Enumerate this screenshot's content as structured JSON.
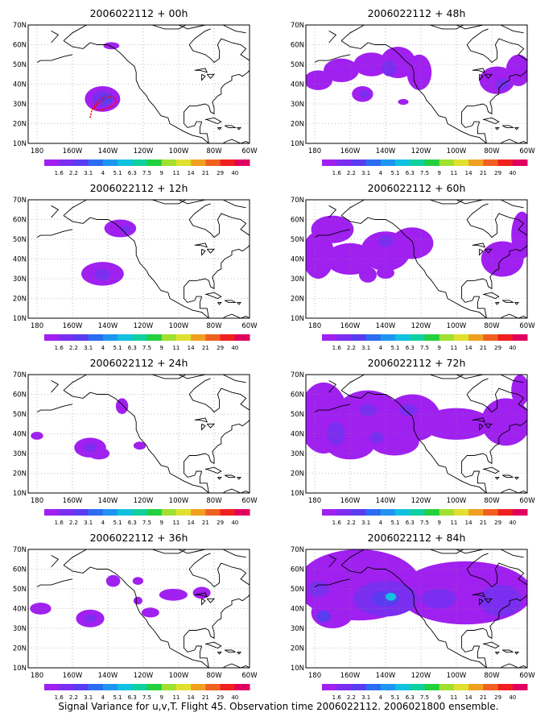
{
  "caption": "Signal Variance for u,v,T. Flight 45. Observation time 2006022112. 2006021800 ensemble.",
  "chart_data": {
    "type": "heatmap",
    "colorbar": {
      "labels": [
        "1.6",
        "2.2",
        "3.1",
        "4",
        "5.1",
        "6.3",
        "7.5",
        "9",
        "11",
        "14",
        "21",
        "29",
        "40"
      ],
      "colors": [
        "#a020f0",
        "#7a2ef0",
        "#5a3cf0",
        "#2b6cf0",
        "#1e96f0",
        "#12c0e0",
        "#10d0a0",
        "#22d040",
        "#a0e030",
        "#e0e030",
        "#f0a020",
        "#f06020",
        "#f02020",
        "#e00060"
      ]
    },
    "panels": [
      {
        "title": "2006022112 + 00h",
        "xticks": [
          "180",
          "160W",
          "140W",
          "120W",
          "100W",
          "80W",
          "60W"
        ],
        "yticks": [
          "10N",
          "20N",
          "30N",
          "40N",
          "50N",
          "60N",
          "70N"
        ],
        "xlim": [
          -185,
          -60
        ],
        "ylim": [
          10,
          70
        ],
        "blobs": [
          {
            "lon": -143,
            "lat": 32.5,
            "rlon": 10,
            "rlat": 6.5,
            "level": 0
          },
          {
            "lon": -143,
            "lat": 32.5,
            "rlon": 6,
            "rlat": 4,
            "level": 1
          },
          {
            "lon": -141,
            "lat": 32.5,
            "rlon": 3.5,
            "rlat": 2.5,
            "level": 2
          },
          {
            "lon": -138,
            "lat": 59.5,
            "rlon": 4.5,
            "rlat": 1.8,
            "level": 0
          }
        ],
        "track": true
      },
      {
        "title": "2006022112 + 48h",
        "xticks": [
          "180",
          "160W",
          "140W",
          "120W",
          "100W",
          "80W",
          "60W"
        ],
        "yticks": [
          "10N",
          "20N",
          "30N",
          "40N",
          "50N",
          "60N",
          "70N"
        ],
        "xlim": [
          -185,
          -60
        ],
        "ylim": [
          10,
          70
        ],
        "blobs": [
          {
            "lon": -178,
            "lat": 42,
            "rlon": 8,
            "rlat": 5,
            "level": 0
          },
          {
            "lon": -165,
            "lat": 47,
            "rlon": 10,
            "rlat": 6,
            "level": 0
          },
          {
            "lon": -148,
            "lat": 50,
            "rlon": 10,
            "rlat": 6,
            "level": 0
          },
          {
            "lon": -133,
            "lat": 51,
            "rlon": 10,
            "rlat": 8,
            "level": 0
          },
          {
            "lon": -138,
            "lat": 48,
            "rlon": 4,
            "rlat": 4,
            "level": 1
          },
          {
            "lon": -121,
            "lat": 46,
            "rlon": 7,
            "rlat": 9,
            "level": 0
          },
          {
            "lon": -153,
            "lat": 35,
            "rlon": 6,
            "rlat": 4,
            "level": 0
          },
          {
            "lon": -152,
            "lat": 35,
            "rlon": 3,
            "rlat": 2,
            "level": 1
          },
          {
            "lon": -130,
            "lat": 31,
            "rlon": 3,
            "rlat": 1.5,
            "level": 0
          },
          {
            "lon": -77,
            "lat": 42,
            "rlon": 10,
            "rlat": 7,
            "level": 0
          },
          {
            "lon": -65,
            "lat": 47,
            "rlon": 7,
            "rlat": 8,
            "level": 0
          },
          {
            "lon": -74,
            "lat": 40,
            "rlon": 4,
            "rlat": 3,
            "level": 1
          }
        ]
      },
      {
        "title": "2006022112 + 12h",
        "xticks": [
          "180",
          "160W",
          "140W",
          "120W",
          "100W",
          "80W",
          "60W"
        ],
        "yticks": [
          "10N",
          "20N",
          "30N",
          "40N",
          "50N",
          "60N",
          "70N"
        ],
        "xlim": [
          -185,
          -60
        ],
        "ylim": [
          10,
          70
        ],
        "blobs": [
          {
            "lon": -143,
            "lat": 32.5,
            "rlon": 12,
            "rlat": 6,
            "level": 0
          },
          {
            "lon": -143,
            "lat": 32,
            "rlon": 4.5,
            "rlat": 3,
            "level": 1
          },
          {
            "lon": -133,
            "lat": 55.5,
            "rlon": 9,
            "rlat": 4.5,
            "level": 0
          },
          {
            "lon": -130,
            "lat": 55,
            "rlon": 3,
            "rlat": 2,
            "level": 1
          }
        ]
      },
      {
        "title": "2006022112 + 60h",
        "xticks": [
          "180",
          "160W",
          "140W",
          "120W",
          "100W",
          "80W",
          "60W"
        ],
        "yticks": [
          "10N",
          "20N",
          "30N",
          "40N",
          "50N",
          "60N",
          "70N"
        ],
        "xlim": [
          -185,
          -60
        ],
        "ylim": [
          10,
          70
        ],
        "blobs": [
          {
            "lon": -170,
            "lat": 55,
            "rlon": 12,
            "rlat": 7,
            "level": 0
          },
          {
            "lon": -178,
            "lat": 42,
            "rlon": 9,
            "rlat": 12,
            "level": 0
          },
          {
            "lon": -160,
            "lat": 40,
            "rlon": 14,
            "rlat": 8,
            "level": 0
          },
          {
            "lon": -140,
            "lat": 44,
            "rlon": 14,
            "rlat": 10,
            "level": 0
          },
          {
            "lon": -125,
            "lat": 48,
            "rlon": 12,
            "rlat": 8,
            "level": 0
          },
          {
            "lon": -140,
            "lat": 49,
            "rlon": 4,
            "rlat": 3,
            "level": 1
          },
          {
            "lon": -150,
            "lat": 32,
            "rlon": 5,
            "rlat": 4,
            "level": 0
          },
          {
            "lon": -140,
            "lat": 33,
            "rlon": 5,
            "rlat": 3,
            "level": 0
          },
          {
            "lon": -74,
            "lat": 40,
            "rlon": 12,
            "rlat": 9,
            "level": 0
          },
          {
            "lon": -63,
            "lat": 52,
            "rlon": 6,
            "rlat": 12,
            "level": 0
          }
        ]
      },
      {
        "title": "2006022112 + 24h",
        "xticks": [
          "180",
          "160W",
          "140W",
          "120W",
          "100W",
          "80W",
          "60W"
        ],
        "yticks": [
          "10N",
          "20N",
          "30N",
          "40N",
          "50N",
          "60N",
          "70N"
        ],
        "xlim": [
          -185,
          -60
        ],
        "ylim": [
          10,
          70
        ],
        "blobs": [
          {
            "lon": -180,
            "lat": 39,
            "rlon": 3.5,
            "rlat": 2,
            "level": 0
          },
          {
            "lon": -150,
            "lat": 33,
            "rlon": 9,
            "rlat": 5,
            "level": 0
          },
          {
            "lon": -145,
            "lat": 30,
            "rlon": 6,
            "rlat": 3,
            "level": 0
          },
          {
            "lon": -150,
            "lat": 33,
            "rlon": 3.5,
            "rlat": 2,
            "level": 1
          },
          {
            "lon": -132,
            "lat": 54,
            "rlon": 3.5,
            "rlat": 4,
            "level": 0
          },
          {
            "lon": -122,
            "lat": 34,
            "rlon": 3.5,
            "rlat": 2,
            "level": 0
          }
        ]
      },
      {
        "title": "2006022112 + 72h",
        "xticks": [
          "180",
          "160W",
          "140W",
          "120W",
          "100W",
          "80W",
          "60W"
        ],
        "yticks": [
          "10N",
          "20N",
          "30N",
          "40N",
          "50N",
          "60N",
          "70N"
        ],
        "xlim": [
          -185,
          -60
        ],
        "ylim": [
          10,
          70
        ],
        "blobs": [
          {
            "lon": -175,
            "lat": 48,
            "rlon": 14,
            "rlat": 18,
            "level": 0
          },
          {
            "lon": -150,
            "lat": 50,
            "rlon": 18,
            "rlat": 12,
            "level": 0
          },
          {
            "lon": -125,
            "lat": 48,
            "rlon": 16,
            "rlat": 12,
            "level": 0
          },
          {
            "lon": -160,
            "lat": 35,
            "rlon": 14,
            "rlat": 8,
            "level": 0
          },
          {
            "lon": -135,
            "lat": 36,
            "rlon": 14,
            "rlat": 7,
            "level": 0
          },
          {
            "lon": -100,
            "lat": 45,
            "rlon": 20,
            "rlat": 8,
            "level": 0
          },
          {
            "lon": -72,
            "lat": 46,
            "rlon": 14,
            "rlat": 12,
            "level": 0
          },
          {
            "lon": -64,
            "lat": 62,
            "rlon": 5,
            "rlat": 8,
            "level": 0
          },
          {
            "lon": -168,
            "lat": 40,
            "rlon": 5,
            "rlat": 6,
            "level": 1
          },
          {
            "lon": -150,
            "lat": 52,
            "rlon": 5,
            "rlat": 3,
            "level": 1
          },
          {
            "lon": -127,
            "lat": 52,
            "rlon": 5,
            "rlat": 3,
            "level": 1
          },
          {
            "lon": -145,
            "lat": 38,
            "rlon": 4,
            "rlat": 3,
            "level": 1
          }
        ]
      },
      {
        "title": "2006022112 + 36h",
        "xticks": [
          "180",
          "160W",
          "140W",
          "120W",
          "100W",
          "80W",
          "60W"
        ],
        "yticks": [
          "10N",
          "20N",
          "30N",
          "40N",
          "50N",
          "60N",
          "70N"
        ],
        "xlim": [
          -185,
          -60
        ],
        "ylim": [
          10,
          70
        ],
        "blobs": [
          {
            "lon": -178,
            "lat": 40,
            "rlon": 6,
            "rlat": 3,
            "level": 0
          },
          {
            "lon": -150,
            "lat": 35,
            "rlon": 8,
            "rlat": 4.5,
            "level": 0
          },
          {
            "lon": -150,
            "lat": 35,
            "rlon": 3,
            "rlat": 2,
            "level": 1
          },
          {
            "lon": -137,
            "lat": 54,
            "rlon": 4,
            "rlat": 3,
            "level": 0
          },
          {
            "lon": -123,
            "lat": 54,
            "rlon": 3,
            "rlat": 2,
            "level": 0
          },
          {
            "lon": -123,
            "lat": 44,
            "rlon": 2.5,
            "rlat": 2,
            "level": 0
          },
          {
            "lon": -116,
            "lat": 38,
            "rlon": 5,
            "rlat": 2.5,
            "level": 0
          },
          {
            "lon": -103,
            "lat": 47,
            "rlon": 8,
            "rlat": 3,
            "level": 0
          },
          {
            "lon": -87,
            "lat": 48,
            "rlon": 5,
            "rlat": 3,
            "level": 0
          }
        ]
      },
      {
        "title": "2006022112 + 84h",
        "xticks": [
          "180",
          "160W",
          "140W",
          "120W",
          "100W",
          "80W",
          "60W"
        ],
        "yticks": [
          "10N",
          "20N",
          "30N",
          "40N",
          "50N",
          "60N",
          "70N"
        ],
        "xlim": [
          -185,
          -60
        ],
        "ylim": [
          10,
          70
        ],
        "blobs": [
          {
            "lon": -155,
            "lat": 52,
            "rlon": 35,
            "rlat": 18,
            "level": 0
          },
          {
            "lon": -95,
            "lat": 48,
            "rlon": 38,
            "rlat": 16,
            "level": 0
          },
          {
            "lon": -170,
            "lat": 38,
            "rlon": 12,
            "rlat": 8,
            "level": 0
          },
          {
            "lon": -140,
            "lat": 45,
            "rlon": 18,
            "rlat": 9,
            "level": 1
          },
          {
            "lon": -178,
            "lat": 50,
            "rlon": 6,
            "rlat": 4,
            "level": 1
          },
          {
            "lon": -175,
            "lat": 36,
            "rlon": 4,
            "rlat": 3,
            "level": 2
          },
          {
            "lon": -140,
            "lat": 45,
            "rlon": 8,
            "rlat": 4,
            "level": 2
          },
          {
            "lon": -137,
            "lat": 46,
            "rlon": 3,
            "rlat": 2,
            "level": 5
          },
          {
            "lon": -110,
            "lat": 45,
            "rlon": 10,
            "rlat": 5,
            "level": 1
          },
          {
            "lon": -75,
            "lat": 44,
            "rlon": 12,
            "rlat": 8,
            "level": 1
          }
        ]
      }
    ]
  }
}
